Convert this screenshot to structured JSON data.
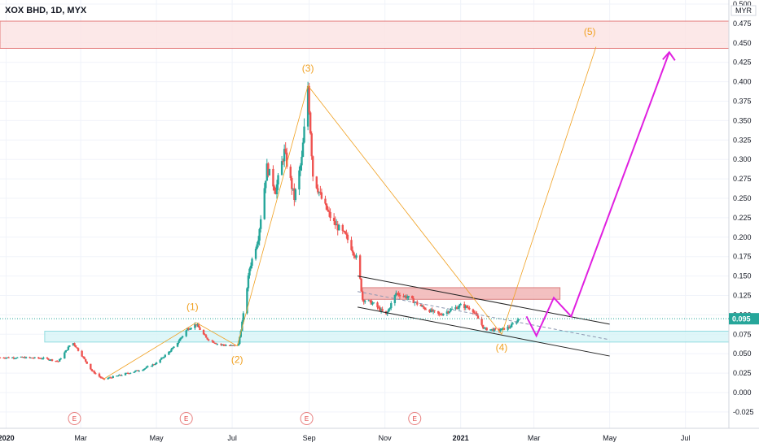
{
  "chart_data": {
    "type": "candlestick",
    "title": "XOX BHD, 1D, MYX",
    "currency": "MYR",
    "y_ticks": [
      "0.500",
      "0.475",
      "0.450",
      "0.425",
      "0.400",
      "0.375",
      "0.350",
      "0.325",
      "0.300",
      "0.275",
      "0.250",
      "0.225",
      "0.200",
      "0.175",
      "0.150",
      "0.125",
      "0.100",
      "0.075",
      "0.050",
      "0.025",
      "0.000",
      "-0.025"
    ],
    "ylim": [
      -0.035,
      0.505
    ],
    "x_ticks": [
      {
        "label": "2020",
        "date": "2020-01-01",
        "bold": true
      },
      {
        "label": "Mar",
        "date": "2020-03-01"
      },
      {
        "label": "May",
        "date": "2020-05-01"
      },
      {
        "label": "Jul",
        "date": "2020-07-01"
      },
      {
        "label": "Sep",
        "date": "2020-09-01"
      },
      {
        "label": "Nov",
        "date": "2020-11-01"
      },
      {
        "label": "2021",
        "date": "2021-01-01",
        "bold": true
      },
      {
        "label": "Mar",
        "date": "2021-03-01"
      },
      {
        "label": "May",
        "date": "2021-05-01"
      },
      {
        "label": "Jul",
        "date": "2021-07-01"
      }
    ],
    "xlim": [
      "2019-12-27",
      "2021-08-05"
    ],
    "last_price": "0.095",
    "price_path": [
      [
        "2019-12-27",
        0.045
      ],
      [
        "2020-01-15",
        0.045
      ],
      [
        "2020-02-01",
        0.044
      ],
      [
        "2020-02-12",
        0.04
      ],
      [
        "2020-02-20",
        0.058
      ],
      [
        "2020-02-23",
        0.066
      ],
      [
        "2020-03-01",
        0.05
      ],
      [
        "2020-03-10",
        0.028
      ],
      [
        "2020-03-19",
        0.017
      ],
      [
        "2020-04-01",
        0.022
      ],
      [
        "2020-04-20",
        0.03
      ],
      [
        "2020-05-01",
        0.038
      ],
      [
        "2020-05-15",
        0.058
      ],
      [
        "2020-05-26",
        0.082
      ],
      [
        "2020-06-02",
        0.088
      ],
      [
        "2020-06-10",
        0.07
      ],
      [
        "2020-06-20",
        0.062
      ],
      [
        "2020-07-01",
        0.06
      ],
      [
        "2020-07-06",
        0.062
      ],
      [
        "2020-07-10",
        0.1
      ],
      [
        "2020-07-15",
        0.16
      ],
      [
        "2020-07-22",
        0.2
      ],
      [
        "2020-07-29",
        0.29
      ],
      [
        "2020-08-05",
        0.26
      ],
      [
        "2020-08-12",
        0.31
      ],
      [
        "2020-08-20",
        0.25
      ],
      [
        "2020-08-26",
        0.3
      ],
      [
        "2020-08-31",
        0.395
      ],
      [
        "2020-09-04",
        0.28
      ],
      [
        "2020-09-12",
        0.245
      ],
      [
        "2020-09-20",
        0.22
      ],
      [
        "2020-10-01",
        0.2
      ],
      [
        "2020-10-10",
        0.17
      ],
      [
        "2020-10-14",
        0.12
      ],
      [
        "2020-10-22",
        0.115
      ],
      [
        "2020-11-02",
        0.1
      ],
      [
        "2020-11-10",
        0.128
      ],
      [
        "2020-11-20",
        0.122
      ],
      [
        "2020-12-01",
        0.11
      ],
      [
        "2020-12-15",
        0.1
      ],
      [
        "2021-01-01",
        0.112
      ],
      [
        "2021-01-10",
        0.108
      ],
      [
        "2021-01-20",
        0.082
      ],
      [
        "2021-02-01",
        0.08
      ],
      [
        "2021-02-10",
        0.085
      ],
      [
        "2021-02-17",
        0.095
      ]
    ],
    "zones": [
      {
        "name": "resistance-zone-top",
        "y1": 0.443,
        "y2": 0.478,
        "fill": "#fce4e4",
        "stroke": "#e06666",
        "x1": "2019-12-27",
        "x2": "2021-08-05"
      },
      {
        "name": "resistance-zone-mid",
        "y1": 0.12,
        "y2": 0.135,
        "fill": "#f2b6b6",
        "stroke": "#d46a6a",
        "x1": "2020-10-14",
        "x2": "2021-03-22"
      },
      {
        "name": "support-zone",
        "y1": 0.065,
        "y2": 0.079,
        "fill": "#d9f5f7",
        "stroke": "#7fd6dc",
        "x1": "2020-02-01",
        "x2": "2021-08-05"
      }
    ],
    "trend_channel": [
      {
        "x1": "2020-10-10",
        "y1": 0.15,
        "x2": "2021-05-01",
        "y2": 0.088
      },
      {
        "x1": "2020-10-10",
        "y1": 0.11,
        "x2": "2021-05-01",
        "y2": 0.047
      }
    ],
    "wave_labels": [
      {
        "label": "(1)",
        "date": "2020-05-30",
        "value": 0.106
      },
      {
        "label": "(2)",
        "date": "2020-07-05",
        "value": 0.038
      },
      {
        "label": "(3)",
        "date": "2020-08-31",
        "value": 0.413
      },
      {
        "label": "(4)",
        "date": "2021-02-03",
        "value": 0.054
      },
      {
        "label": "(5)",
        "date": "2021-04-15",
        "value": 0.46
      }
    ],
    "wave_path": [
      [
        "2020-03-19",
        0.017
      ],
      [
        "2020-06-02",
        0.09
      ],
      [
        "2020-07-05",
        0.06
      ],
      [
        "2020-08-31",
        0.395
      ],
      [
        "2021-02-03",
        0.075
      ],
      [
        "2021-04-20",
        0.445
      ]
    ],
    "projection_path": [
      [
        "2021-02-23",
        0.098
      ],
      [
        "2021-03-03",
        0.073
      ],
      [
        "2021-03-17",
        0.122
      ],
      [
        "2021-03-31",
        0.098
      ],
      [
        "2021-06-18",
        0.438
      ]
    ],
    "earnings_markers": [
      {
        "label": "E",
        "date": "2020-02-25"
      },
      {
        "label": "E",
        "date": "2020-05-25"
      },
      {
        "label": "E",
        "date": "2020-08-30"
      },
      {
        "label": "E",
        "date": "2020-11-25"
      }
    ],
    "colors": {
      "up": "#26a69a",
      "down": "#ef5350",
      "wave": "#f0a020",
      "projection": "#e020e0",
      "channel": "#222222",
      "price_tag": "#26a69a"
    }
  }
}
